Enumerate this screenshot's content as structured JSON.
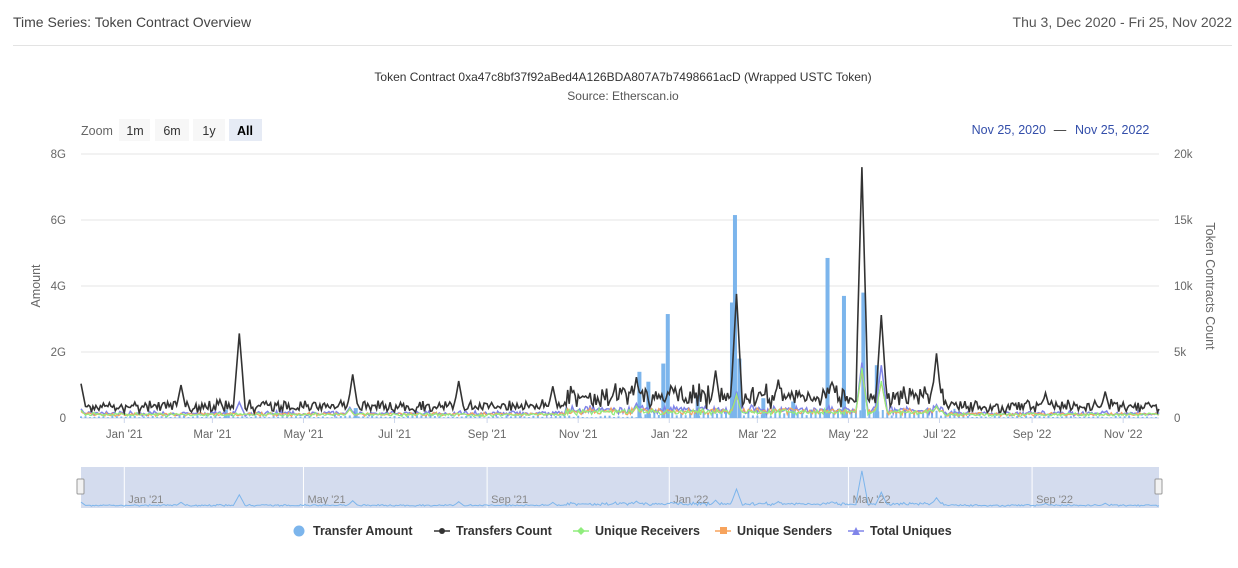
{
  "header": {
    "title": "Time Series: Token Contract Overview",
    "date_range": "Thu 3, Dec 2020 - Fri 25, Nov 2022"
  },
  "zoom": {
    "label": "Zoom",
    "buttons": [
      "1m",
      "6m",
      "1y",
      "All"
    ],
    "selected": "All",
    "range_from": "Nov 25, 2020",
    "range_sep": "—",
    "range_to": "Nov 25, 2022"
  },
  "colors": {
    "transfer_amount": "#7cb5ec",
    "transfers_count": "#333333",
    "unique_receivers": "#90ed7d",
    "unique_senders": "#f7a35c",
    "total_uniques": "#8085e9",
    "navigator_fill": "#ccd6eb"
  },
  "chart_data": {
    "type": "line",
    "title": "Token Contract 0xa47c8bf37f92aBed4A126BDA807A7b7498661acD (Wrapped USTC Token)",
    "subtitle": "Source: Etherscan.io",
    "ylabel": "Amount",
    "ylabel_right": "Token Contracts Count",
    "ylim": [
      0,
      8000000000
    ],
    "ylim_right": [
      0,
      20000
    ],
    "y_ticks": [
      "0",
      "2G",
      "4G",
      "6G",
      "8G"
    ],
    "y_ticks_right": [
      "0",
      "5k",
      "10k",
      "15k",
      "20k"
    ],
    "x_ticks": [
      "Jan '21",
      "Mar '21",
      "May '21",
      "Jul '21",
      "Sep '21",
      "Nov '21",
      "Jan '22",
      "Mar '22",
      "May '22",
      "Jul '22",
      "Sep '22",
      "Nov '22"
    ],
    "navigator_ticks": [
      "Jan '21",
      "May '21",
      "Sep '21",
      "Jan '22",
      "May '22",
      "Sep '22"
    ],
    "legend": [
      "Transfer Amount",
      "Transfers Count",
      "Unique Receivers",
      "Unique Senders",
      "Total Uniques"
    ],
    "series": [
      {
        "name": "Transfer Amount",
        "type": "column",
        "axis": "left",
        "points": [
          [
            "2021-12-12",
            1400000000
          ],
          [
            "2021-12-18",
            1100000000
          ],
          [
            "2021-12-28",
            1650000000
          ],
          [
            "2021-12-31",
            3150000000
          ],
          [
            "2022-02-12",
            3500000000
          ],
          [
            "2022-02-14",
            6150000000
          ],
          [
            "2022-02-17",
            1800000000
          ],
          [
            "2022-04-17",
            4850000000
          ],
          [
            "2022-04-28",
            3700000000
          ],
          [
            "2022-05-11",
            3800000000
          ],
          [
            "2022-05-20",
            1600000000
          ],
          [
            "2022-03-05",
            600000000
          ],
          [
            "2022-01-20",
            700000000
          ],
          [
            "2022-03-25",
            500000000
          ],
          [
            "2021-06-05",
            300000000
          ],
          [
            "2021-03-10",
            250000000
          ]
        ]
      },
      {
        "name": "Transfers Count",
        "type": "line",
        "axis": "right",
        "peaks": [
          [
            "2020-12-03",
            2600
          ],
          [
            "2021-01-08",
            1200
          ],
          [
            "2021-02-08",
            2500
          ],
          [
            "2021-03-19",
            6400
          ],
          [
            "2021-06-03",
            3300
          ],
          [
            "2021-08-13",
            2800
          ],
          [
            "2021-10-15",
            2400
          ],
          [
            "2021-12-10",
            3100
          ],
          [
            "2022-01-05",
            2300
          ],
          [
            "2022-02-01",
            3600
          ],
          [
            "2022-02-15",
            9400
          ],
          [
            "2022-03-15",
            2900
          ],
          [
            "2022-04-20",
            2700
          ],
          [
            "2022-05-10",
            19000
          ],
          [
            "2022-05-23",
            7800
          ],
          [
            "2022-06-29",
            4900
          ],
          [
            "2022-09-10",
            1900
          ],
          [
            "2022-10-20",
            2000
          ]
        ]
      },
      {
        "name": "Unique Receivers",
        "type": "line",
        "axis": "right",
        "peaks": [
          [
            "2020-12-03",
            600
          ],
          [
            "2021-06-01",
            700
          ],
          [
            "2021-12-10",
            900
          ],
          [
            "2022-02-15",
            1800
          ],
          [
            "2022-05-10",
            3800
          ],
          [
            "2022-05-23",
            2800
          ],
          [
            "2022-06-29",
            900
          ]
        ]
      },
      {
        "name": "Unique Senders",
        "type": "line",
        "axis": "right",
        "peaks": [
          [
            "2020-12-03",
            500
          ],
          [
            "2021-06-01",
            650
          ],
          [
            "2021-12-10",
            850
          ],
          [
            "2022-02-15",
            1700
          ],
          [
            "2022-05-10",
            3600
          ],
          [
            "2022-05-23",
            2700
          ],
          [
            "2022-06-29",
            850
          ]
        ]
      },
      {
        "name": "Total Uniques",
        "type": "line",
        "axis": "right",
        "peaks": [
          [
            "2020-12-03",
            700
          ],
          [
            "2021-03-19",
            1200
          ],
          [
            "2021-06-01",
            800
          ],
          [
            "2021-12-10",
            1100
          ],
          [
            "2022-02-15",
            2000
          ],
          [
            "2022-05-10",
            4200
          ],
          [
            "2022-05-23",
            4000
          ],
          [
            "2022-06-29",
            1000
          ]
        ]
      }
    ]
  }
}
